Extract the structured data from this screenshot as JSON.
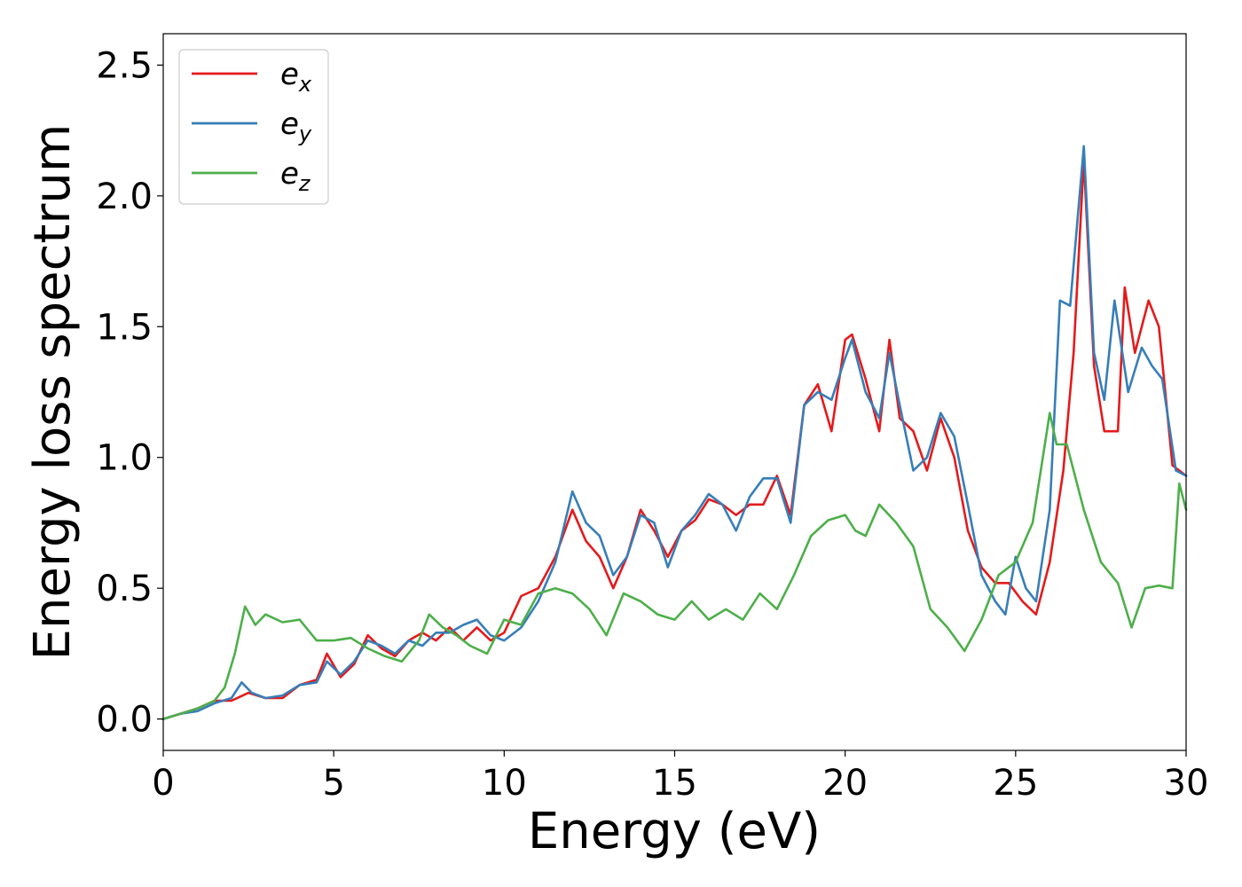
{
  "chart_data": {
    "type": "line",
    "xlabel": "Energy (eV)",
    "ylabel": "Energy loss spectrum",
    "xlim": [
      0,
      30
    ],
    "ylim": [
      -0.12,
      2.62
    ],
    "xticks": [
      0,
      5,
      10,
      15,
      20,
      25,
      30
    ],
    "xtick_labels": [
      "0",
      "5",
      "10",
      "15",
      "20",
      "25",
      "30"
    ],
    "yticks": [
      0.0,
      0.5,
      1.0,
      1.5,
      2.0,
      2.5
    ],
    "ytick_labels": [
      "0.0",
      "0.5",
      "1.0",
      "1.5",
      "2.0",
      "2.5"
    ],
    "grid": false,
    "legend_position": "top-left",
    "series": [
      {
        "name": "e_x",
        "label_main": "e",
        "label_sub": "x",
        "color": "#e41a1c",
        "x": [
          0,
          0.5,
          1,
          1.5,
          2,
          2.5,
          3,
          3.5,
          4,
          4.5,
          4.8,
          5.2,
          5.6,
          6,
          6.4,
          6.8,
          7.2,
          7.6,
          8,
          8.4,
          8.8,
          9.2,
          9.6,
          10,
          10.5,
          11,
          11.5,
          12,
          12.4,
          12.8,
          13.2,
          13.6,
          14,
          14.4,
          14.8,
          15.2,
          15.6,
          16,
          16.4,
          16.8,
          17.2,
          17.6,
          18,
          18.4,
          18.8,
          19.2,
          19.6,
          20,
          20.2,
          20.6,
          21,
          21.3,
          21.6,
          22,
          22.4,
          22.8,
          23.2,
          23.6,
          24,
          24.4,
          24.8,
          25.2,
          25.6,
          26,
          26.4,
          26.7,
          27,
          27.3,
          27.6,
          28,
          28.2,
          28.5,
          28.9,
          29.2,
          29.6,
          30
        ],
        "y": [
          0.0,
          0.02,
          0.04,
          0.07,
          0.07,
          0.1,
          0.08,
          0.08,
          0.13,
          0.15,
          0.25,
          0.16,
          0.21,
          0.32,
          0.27,
          0.24,
          0.3,
          0.33,
          0.3,
          0.35,
          0.3,
          0.35,
          0.3,
          0.33,
          0.47,
          0.5,
          0.62,
          0.8,
          0.68,
          0.62,
          0.5,
          0.62,
          0.8,
          0.72,
          0.62,
          0.72,
          0.76,
          0.84,
          0.82,
          0.78,
          0.82,
          0.82,
          0.93,
          0.78,
          1.2,
          1.28,
          1.1,
          1.45,
          1.47,
          1.3,
          1.1,
          1.45,
          1.15,
          1.1,
          0.95,
          1.15,
          1.0,
          0.72,
          0.58,
          0.52,
          0.52,
          0.45,
          0.4,
          0.6,
          0.95,
          1.4,
          2.14,
          1.35,
          1.1,
          1.1,
          1.65,
          1.4,
          1.6,
          1.5,
          0.97,
          0.93
        ]
      },
      {
        "name": "e_y",
        "label_main": "e",
        "label_sub": "y",
        "color": "#377eb8",
        "x": [
          0,
          0.5,
          1,
          1.5,
          2,
          2.3,
          2.6,
          3,
          3.5,
          4,
          4.5,
          4.8,
          5.2,
          5.6,
          6,
          6.4,
          6.8,
          7.2,
          7.6,
          8,
          8.4,
          8.8,
          9.2,
          9.6,
          10,
          10.5,
          11,
          11.5,
          12,
          12.4,
          12.8,
          13.2,
          13.6,
          14,
          14.4,
          14.8,
          15.2,
          15.6,
          16,
          16.4,
          16.8,
          17.2,
          17.6,
          18,
          18.4,
          18.8,
          19.2,
          19.6,
          20,
          20.2,
          20.6,
          21,
          21.3,
          21.6,
          22,
          22.4,
          22.8,
          23.2,
          23.6,
          24,
          24.4,
          24.7,
          25,
          25.3,
          25.6,
          26,
          26.3,
          26.6,
          27,
          27.3,
          27.6,
          27.9,
          28.3,
          28.7,
          29,
          29.3,
          29.7,
          30
        ],
        "y": [
          0.0,
          0.02,
          0.03,
          0.06,
          0.08,
          0.14,
          0.1,
          0.08,
          0.09,
          0.13,
          0.14,
          0.22,
          0.17,
          0.22,
          0.3,
          0.28,
          0.25,
          0.3,
          0.28,
          0.33,
          0.33,
          0.36,
          0.38,
          0.32,
          0.3,
          0.35,
          0.45,
          0.6,
          0.87,
          0.75,
          0.7,
          0.55,
          0.62,
          0.78,
          0.75,
          0.58,
          0.72,
          0.78,
          0.86,
          0.82,
          0.72,
          0.85,
          0.92,
          0.92,
          0.75,
          1.2,
          1.25,
          1.22,
          1.38,
          1.45,
          1.25,
          1.15,
          1.4,
          1.2,
          0.95,
          1.0,
          1.17,
          1.08,
          0.82,
          0.55,
          0.45,
          0.4,
          0.62,
          0.5,
          0.45,
          0.8,
          1.6,
          1.58,
          2.19,
          1.4,
          1.22,
          1.6,
          1.25,
          1.42,
          1.35,
          1.3,
          0.95,
          0.93
        ]
      },
      {
        "name": "e_z",
        "label_main": "e",
        "label_sub": "z",
        "color": "#4daf4a",
        "x": [
          0,
          0.5,
          1,
          1.5,
          1.8,
          2.1,
          2.4,
          2.7,
          3,
          3.5,
          4,
          4.5,
          5,
          5.5,
          6,
          6.5,
          7,
          7.5,
          7.8,
          8.2,
          8.6,
          9,
          9.5,
          10,
          10.5,
          11,
          11.5,
          12,
          12.5,
          13,
          13.5,
          14,
          14.5,
          15,
          15.5,
          16,
          16.5,
          17,
          17.5,
          18,
          18.5,
          19,
          19.5,
          20,
          20.3,
          20.6,
          21,
          21.5,
          22,
          22.5,
          23,
          23.5,
          24,
          24.5,
          25,
          25.5,
          26,
          26.2,
          26.5,
          27,
          27.5,
          28,
          28.4,
          28.8,
          29.2,
          29.6,
          29.8,
          30
        ],
        "y": [
          0.0,
          0.02,
          0.04,
          0.07,
          0.12,
          0.25,
          0.43,
          0.36,
          0.4,
          0.37,
          0.38,
          0.3,
          0.3,
          0.31,
          0.27,
          0.24,
          0.22,
          0.3,
          0.4,
          0.35,
          0.32,
          0.28,
          0.25,
          0.38,
          0.36,
          0.48,
          0.5,
          0.48,
          0.42,
          0.32,
          0.48,
          0.45,
          0.4,
          0.38,
          0.45,
          0.38,
          0.42,
          0.38,
          0.48,
          0.42,
          0.55,
          0.7,
          0.76,
          0.78,
          0.72,
          0.7,
          0.82,
          0.75,
          0.66,
          0.42,
          0.35,
          0.26,
          0.38,
          0.55,
          0.6,
          0.75,
          1.17,
          1.05,
          1.05,
          0.8,
          0.6,
          0.52,
          0.35,
          0.5,
          0.51,
          0.5,
          0.9,
          0.8
        ]
      }
    ]
  }
}
